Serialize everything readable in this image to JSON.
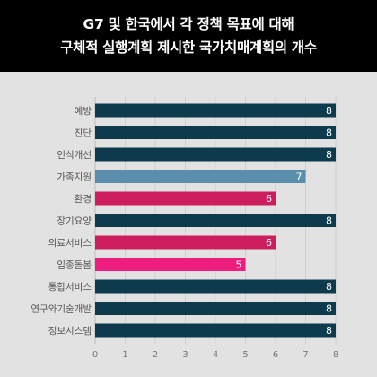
{
  "header": {
    "title_line1": "G7 및 한국에서 각 정책 목표에 대해",
    "title_line2": "구체적 실행계획 제시한 국가치매계획의 개수"
  },
  "chart_data": {
    "type": "bar",
    "orientation": "horizontal",
    "title": "G7 및 한국에서 각 정책 목표에 대해 구체적 실행계획 제시한 국가치매계획의 개수",
    "categories": [
      "예방",
      "진단",
      "인식개선",
      "가족지원",
      "환경",
      "장기요양",
      "의료서비스",
      "임종돌봄",
      "통합서비스",
      "연구와기술개발",
      "정보시스템"
    ],
    "values": [
      8,
      8,
      8,
      7,
      6,
      8,
      6,
      5,
      8,
      8,
      8
    ],
    "colors": [
      "#0d3a4d",
      "#0d3a4d",
      "#0d3a4d",
      "#5b8ead",
      "#cc1e5e",
      "#0d3a4d",
      "#cc1e5e",
      "#ee1e7e",
      "#0d3a4d",
      "#0d3a4d",
      "#0d3a4d"
    ],
    "xlim": [
      0,
      8
    ],
    "xticks": [
      0,
      1,
      2,
      3,
      4,
      5,
      6,
      7,
      8
    ],
    "grid": true
  }
}
